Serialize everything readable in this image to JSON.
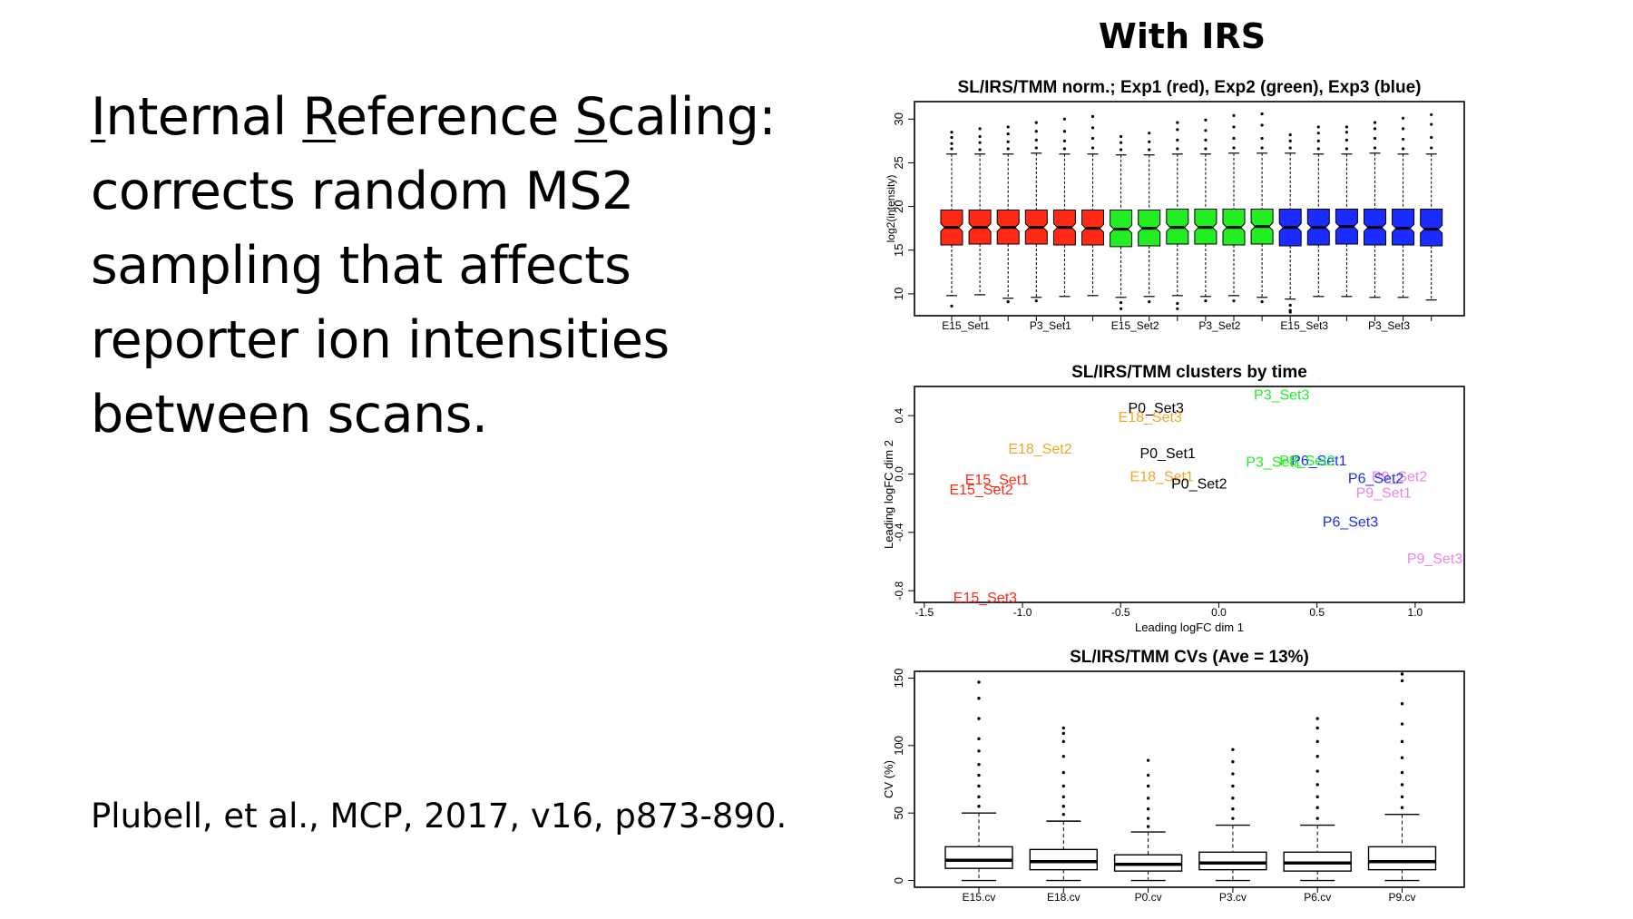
{
  "slide": {
    "heading_line1": {
      "i": "I",
      "i_rest": "nternal ",
      "r": "R",
      "r_rest": "eference ",
      "s": "S",
      "s_rest": "caling:"
    },
    "body_lines": [
      "corrects random MS2",
      "sampling that affects",
      "reporter ion intensities",
      "between scans."
    ],
    "citation": "Plubell, et al., MCP, 2017, v16, p873-890.",
    "panel_title": "With IRS"
  },
  "chart_data": [
    {
      "type": "boxplot",
      "title": "SL/IRS/TMM norm.; Exp1 (red), Exp2 (green), Exp3 (blue)",
      "xlabel": "",
      "ylabel": "log2(intensity)",
      "ylim": [
        7.5,
        32
      ],
      "yticks": [
        10,
        15,
        20,
        25,
        30
      ],
      "tick_labels": [
        "E15_Set1",
        "P3_Set1",
        "E15_Set2",
        "P3_Set2",
        "E15_Set3",
        "P3_Set3"
      ],
      "series_colors": {
        "Exp1": "#ff2a16",
        "Exp2": "#22ee22",
        "Exp3": "#1a2cff"
      },
      "boxes": [
        {
          "exp": "Exp1",
          "q1": 15.6,
          "median": 17.6,
          "q3": 19.6,
          "lo": 9.8,
          "hi": 26.0,
          "outliers_hi": [
            26.6,
            27.2,
            27.9,
            28.5
          ],
          "outliers_lo": [
            8.6
          ]
        },
        {
          "exp": "Exp1",
          "q1": 15.7,
          "median": 17.6,
          "q3": 19.6,
          "lo": 9.9,
          "hi": 26.0,
          "outliers_hi": [
            26.5,
            27.3,
            28.0,
            28.9
          ],
          "outliers_lo": []
        },
        {
          "exp": "Exp1",
          "q1": 15.7,
          "median": 17.6,
          "q3": 19.6,
          "lo": 9.5,
          "hi": 26.0,
          "outliers_hi": [
            26.6,
            27.4,
            28.3,
            29.1
          ],
          "outliers_lo": [
            9.1
          ]
        },
        {
          "exp": "Exp1",
          "q1": 15.7,
          "median": 17.6,
          "q3": 19.6,
          "lo": 9.6,
          "hi": 26.1,
          "outliers_hi": [
            26.7,
            27.6,
            28.6,
            29.6
          ],
          "outliers_lo": [
            9.2
          ]
        },
        {
          "exp": "Exp1",
          "q1": 15.6,
          "median": 17.6,
          "q3": 19.6,
          "lo": 9.7,
          "hi": 26.0,
          "outliers_hi": [
            26.6,
            27.5,
            28.6,
            30.0
          ],
          "outliers_lo": []
        },
        {
          "exp": "Exp1",
          "q1": 15.6,
          "median": 17.5,
          "q3": 19.6,
          "lo": 9.8,
          "hi": 26.0,
          "outliers_hi": [
            26.7,
            27.8,
            29.0,
            30.3
          ],
          "outliers_lo": []
        },
        {
          "exp": "Exp2",
          "q1": 15.4,
          "median": 17.4,
          "q3": 19.6,
          "lo": 9.6,
          "hi": 25.9,
          "outliers_hi": [
            26.5,
            27.3,
            28.0
          ],
          "outliers_lo": [
            9.0,
            8.3
          ]
        },
        {
          "exp": "Exp2",
          "q1": 15.5,
          "median": 17.5,
          "q3": 19.6,
          "lo": 9.7,
          "hi": 25.9,
          "outliers_hi": [
            26.5,
            27.4,
            28.4
          ],
          "outliers_lo": [
            9.1
          ]
        },
        {
          "exp": "Exp2",
          "q1": 15.7,
          "median": 17.6,
          "q3": 19.7,
          "lo": 9.8,
          "hi": 26.0,
          "outliers_hi": [
            26.6,
            27.6,
            28.8,
            29.6
          ],
          "outliers_lo": [
            8.9,
            8.3
          ]
        },
        {
          "exp": "Exp2",
          "q1": 15.7,
          "median": 17.6,
          "q3": 19.7,
          "lo": 9.7,
          "hi": 26.0,
          "outliers_hi": [
            26.6,
            27.6,
            28.7,
            29.9
          ],
          "outliers_lo": [
            9.2
          ]
        },
        {
          "exp": "Exp2",
          "q1": 15.6,
          "median": 17.6,
          "q3": 19.7,
          "lo": 9.8,
          "hi": 26.1,
          "outliers_hi": [
            26.7,
            27.8,
            29.1,
            30.4
          ],
          "outliers_lo": [
            9.2
          ]
        },
        {
          "exp": "Exp2",
          "q1": 15.7,
          "median": 17.7,
          "q3": 19.7,
          "lo": 9.6,
          "hi": 26.1,
          "outliers_hi": [
            26.7,
            27.8,
            29.3,
            30.6
          ],
          "outliers_lo": [
            9.1
          ]
        },
        {
          "exp": "Exp3",
          "q1": 15.5,
          "median": 17.6,
          "q3": 19.7,
          "lo": 9.4,
          "hi": 26.1,
          "outliers_hi": [
            26.7,
            27.5,
            28.2
          ],
          "outliers_lo": [
            8.7,
            8.1,
            7.9
          ]
        },
        {
          "exp": "Exp3",
          "q1": 15.6,
          "median": 17.6,
          "q3": 19.7,
          "lo": 9.7,
          "hi": 26.0,
          "outliers_hi": [
            26.6,
            27.5,
            28.4,
            29.1
          ],
          "outliers_lo": []
        },
        {
          "exp": "Exp3",
          "q1": 15.7,
          "median": 17.7,
          "q3": 19.7,
          "lo": 9.7,
          "hi": 26.0,
          "outliers_hi": [
            26.6,
            27.6,
            28.5,
            29.1
          ],
          "outliers_lo": []
        },
        {
          "exp": "Exp3",
          "q1": 15.6,
          "median": 17.6,
          "q3": 19.7,
          "lo": 9.6,
          "hi": 26.1,
          "outliers_hi": [
            26.7,
            27.8,
            28.9,
            29.6
          ],
          "outliers_lo": []
        },
        {
          "exp": "Exp3",
          "q1": 15.6,
          "median": 17.5,
          "q3": 19.7,
          "lo": 9.6,
          "hi": 26.0,
          "outliers_hi": [
            26.6,
            27.7,
            28.9,
            30.1
          ],
          "outliers_lo": []
        },
        {
          "exp": "Exp3",
          "q1": 15.5,
          "median": 17.4,
          "q3": 19.7,
          "lo": 9.3,
          "hi": 26.0,
          "outliers_hi": [
            26.7,
            27.9,
            29.4,
            30.5
          ],
          "outliers_lo": []
        }
      ]
    },
    {
      "type": "scatter",
      "title": "SL/IRS/TMM clusters by time",
      "xlabel": "Leading logFC dim 1",
      "ylabel": "Leading logFC dim 2",
      "xlim": [
        -1.55,
        1.25
      ],
      "ylim": [
        -0.88,
        0.6
      ],
      "xticks": [
        -1.5,
        -1.0,
        -0.5,
        0.0,
        0.5,
        1.0
      ],
      "xtick_labels": [
        "-1.5",
        "-1.0",
        "-0.5",
        "0.0",
        "0.5",
        "1.0"
      ],
      "yticks": [
        -0.8,
        -0.4,
        0.0,
        0.4
      ],
      "ytick_labels": [
        "-0.8",
        "-0.4",
        "0.0",
        "0.4"
      ],
      "points": [
        {
          "label": "P3_Set3",
          "x": 0.32,
          "y": 0.54,
          "color": "#22ee22"
        },
        {
          "label": "P0_Set3",
          "x": -0.32,
          "y": 0.45,
          "color": "#000000"
        },
        {
          "label": "E18_Set3",
          "x": -0.35,
          "y": 0.39,
          "color": "#f4a525"
        },
        {
          "label": "E18_Set2",
          "x": -0.91,
          "y": 0.17,
          "color": "#f4a525"
        },
        {
          "label": "P0_Set1",
          "x": -0.26,
          "y": 0.14,
          "color": "#000000"
        },
        {
          "label": "P3_Set1",
          "x": 0.28,
          "y": 0.08,
          "color": "#22ee22"
        },
        {
          "label": "P6_Set1",
          "x": 0.51,
          "y": 0.09,
          "color": "#1a2cff"
        },
        {
          "label": "P3_Set2",
          "x": 0.45,
          "y": 0.09,
          "color": "#22ee22"
        },
        {
          "label": "P9_Set2",
          "x": 0.92,
          "y": -0.02,
          "color": "#ee82ee"
        },
        {
          "label": "P6_Set2",
          "x": 0.8,
          "y": -0.03,
          "color": "#1a2cff"
        },
        {
          "label": "E15_Set1",
          "x": -1.13,
          "y": -0.04,
          "color": "#ff2a16"
        },
        {
          "label": "E18_Set1",
          "x": -0.29,
          "y": -0.02,
          "color": "#f4a525"
        },
        {
          "label": "P0_Set2",
          "x": -0.1,
          "y": -0.07,
          "color": "#000000"
        },
        {
          "label": "E15_Set2",
          "x": -1.21,
          "y": -0.11,
          "color": "#ff2a16"
        },
        {
          "label": "P9_Set1",
          "x": 0.84,
          "y": -0.13,
          "color": "#ee82ee"
        },
        {
          "label": "P6_Set3",
          "x": 0.67,
          "y": -0.33,
          "color": "#1a2cff"
        },
        {
          "label": "P9_Set3",
          "x": 1.1,
          "y": -0.58,
          "color": "#ee82ee"
        },
        {
          "label": "E15_Set3",
          "x": -1.19,
          "y": -0.85,
          "color": "#ff2a16"
        }
      ]
    },
    {
      "type": "boxplot",
      "title": "SL/IRS/TMM CVs (Ave = 13%)",
      "xlabel": "",
      "ylabel": "CV (%)",
      "ylim": [
        -5,
        155
      ],
      "yticks": [
        0,
        50,
        100,
        150
      ],
      "ytick_labels": [
        "0",
        "50",
        "100",
        "150"
      ],
      "categories": [
        "E15.cv",
        "E18.cv",
        "P0.cv",
        "P3.cv",
        "P6.cv",
        "P9.cv"
      ],
      "boxes": [
        {
          "q1": 9,
          "median": 15,
          "q3": 25,
          "lo": 0,
          "hi": 50,
          "outliers_hi": [
            55,
            62,
            70,
            78,
            86,
            96,
            105,
            120,
            135,
            147
          ]
        },
        {
          "q1": 8,
          "median": 14,
          "q3": 23,
          "lo": 0,
          "hi": 44,
          "outliers_hi": [
            49,
            55,
            62,
            70,
            80,
            92,
            103,
            109,
            113
          ]
        },
        {
          "q1": 7,
          "median": 12,
          "q3": 19,
          "lo": 0,
          "hi": 36,
          "outliers_hi": [
            40,
            46,
            53,
            61,
            70,
            78,
            89
          ]
        },
        {
          "q1": 8,
          "median": 13,
          "q3": 21,
          "lo": 0,
          "hi": 41,
          "outliers_hi": [
            46,
            53,
            61,
            70,
            79,
            88,
            97
          ]
        },
        {
          "q1": 7,
          "median": 13,
          "q3": 21,
          "lo": 0,
          "hi": 41,
          "outliers_hi": [
            46,
            54,
            62,
            71,
            81,
            92,
            103,
            113,
            120
          ]
        },
        {
          "q1": 8,
          "median": 14,
          "q3": 25,
          "lo": 0,
          "hi": 49,
          "outliers_hi": [
            54,
            62,
            71,
            80,
            91,
            103,
            116,
            131,
            148,
            153
          ]
        }
      ]
    }
  ]
}
